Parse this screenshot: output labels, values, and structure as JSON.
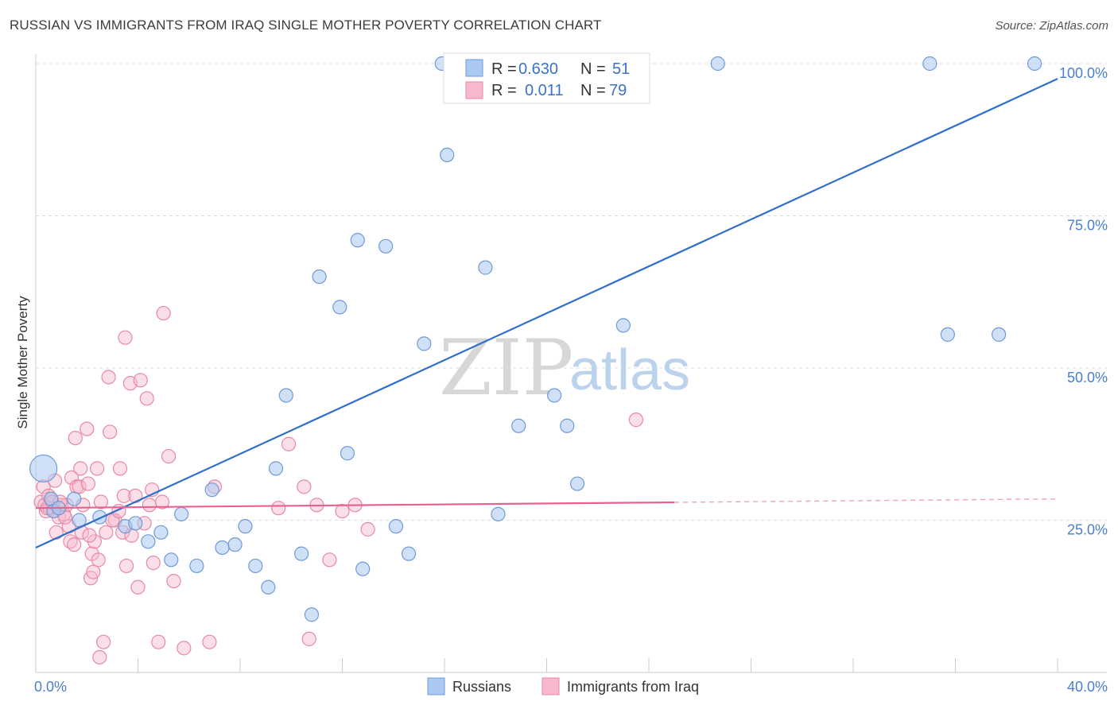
{
  "title": "RUSSIAN VS IMMIGRANTS FROM IRAQ SINGLE MOTHER POVERTY CORRELATION CHART",
  "source": "Source: ZipAtlas.com",
  "watermark": {
    "zip": "ZIP",
    "atlas": "atlas"
  },
  "colors": {
    "russians_fill": "#aac8f0",
    "russians_stroke": "#6f9ad8",
    "russians_line": "#2e6fcc",
    "iraq_fill": "#f6b8cc",
    "iraq_stroke": "#e888a6",
    "iraq_line": "#e8628f",
    "grid": "#dddddd",
    "axis_tick": "#4a7fcf"
  },
  "legend": {
    "rows": [
      {
        "r_label": "R =",
        "r_value": "0.630",
        "n_label": "N =",
        "n_value": "51"
      },
      {
        "r_label": "R =",
        "r_value": "0.011",
        "n_label": "N =",
        "n_value": "79"
      }
    ]
  },
  "bottom_legend": {
    "russians": "Russians",
    "iraq": "Immigrants from Iraq"
  },
  "chart_data": {
    "type": "scatter",
    "title": "RUSSIAN VS IMMIGRANTS FROM IRAQ SINGLE MOTHER POVERTY CORRELATION CHART",
    "ylabel": "Single Mother Poverty",
    "xlabel": "",
    "xlim": [
      0,
      40
    ],
    "ylim": [
      0,
      100
    ],
    "x_tick_labels": [
      "0.0%",
      "40.0%"
    ],
    "y_ticks": [
      25,
      50,
      75,
      100
    ],
    "y_tick_labels": [
      "25.0%",
      "50.0%",
      "75.0%",
      "100.0%"
    ],
    "grid": true,
    "legend_position": "top-center",
    "series": [
      {
        "name": "Russians",
        "R": 0.63,
        "N": 51,
        "trend": {
          "x": [
            0,
            40
          ],
          "y": [
            20.5,
            97.5
          ],
          "dashed_from": null
        },
        "points": [
          [
            0.3,
            33.5,
            "large"
          ],
          [
            0.6,
            28.5
          ],
          [
            0.7,
            26.5
          ],
          [
            0.9,
            27.0
          ],
          [
            1.5,
            28.5
          ],
          [
            1.7,
            25.0
          ],
          [
            2.5,
            25.5
          ],
          [
            3.5,
            24.0
          ],
          [
            3.9,
            24.5
          ],
          [
            4.4,
            21.5
          ],
          [
            4.9,
            23.0
          ],
          [
            5.3,
            18.5
          ],
          [
            5.7,
            26.0
          ],
          [
            6.3,
            17.5
          ],
          [
            6.9,
            30.0
          ],
          [
            7.3,
            20.5
          ],
          [
            7.8,
            21.0
          ],
          [
            8.2,
            24.0
          ],
          [
            8.6,
            17.5
          ],
          [
            9.1,
            14.0
          ],
          [
            9.4,
            33.5
          ],
          [
            9.8,
            45.5
          ],
          [
            10.4,
            19.5
          ],
          [
            10.8,
            9.5
          ],
          [
            11.1,
            65.0
          ],
          [
            11.9,
            60.0
          ],
          [
            12.2,
            36.0
          ],
          [
            12.6,
            71.0
          ],
          [
            12.8,
            17.0
          ],
          [
            13.7,
            70.0
          ],
          [
            14.1,
            24.0
          ],
          [
            14.6,
            19.5
          ],
          [
            15.2,
            54.0
          ],
          [
            15.9,
            100.0
          ],
          [
            16.1,
            85.0
          ],
          [
            17.0,
            100.0
          ],
          [
            17.2,
            100.0
          ],
          [
            17.6,
            66.5
          ],
          [
            18.1,
            26.0
          ],
          [
            18.6,
            100.0
          ],
          [
            18.9,
            40.5
          ],
          [
            20.3,
            45.5
          ],
          [
            20.8,
            40.5
          ],
          [
            21.2,
            31.0
          ],
          [
            22.4,
            100.0
          ],
          [
            23.0,
            57.0
          ],
          [
            26.7,
            100.0
          ],
          [
            35.0,
            100.0
          ],
          [
            35.7,
            55.5
          ],
          [
            37.7,
            55.5
          ],
          [
            39.1,
            100.0
          ]
        ]
      },
      {
        "name": "Immigrants from Iraq",
        "R": 0.011,
        "N": 79,
        "trend": {
          "x": [
            0,
            40
          ],
          "y": [
            27.0,
            28.5
          ],
          "dashed_from": 25.0
        },
        "points": [
          [
            0.2,
            28.0
          ],
          [
            0.3,
            30.5
          ],
          [
            0.35,
            27.5
          ],
          [
            0.4,
            26.5
          ],
          [
            0.5,
            29.0
          ],
          [
            0.55,
            27.0
          ],
          [
            0.6,
            28.5
          ],
          [
            0.7,
            26.5
          ],
          [
            0.75,
            31.5
          ],
          [
            0.8,
            23.0
          ],
          [
            0.9,
            25.5
          ],
          [
            1.0,
            27.5
          ],
          [
            1.1,
            26.0
          ],
          [
            1.2,
            27.5
          ],
          [
            1.3,
            24.0
          ],
          [
            1.35,
            21.5
          ],
          [
            1.4,
            32.0
          ],
          [
            1.5,
            21.0
          ],
          [
            1.55,
            38.5
          ],
          [
            1.6,
            30.5
          ],
          [
            1.7,
            30.5
          ],
          [
            1.75,
            33.5
          ],
          [
            1.8,
            23.0
          ],
          [
            1.85,
            27.5
          ],
          [
            2.0,
            40.0
          ],
          [
            2.05,
            31.0
          ],
          [
            2.15,
            15.5
          ],
          [
            2.2,
            19.5
          ],
          [
            2.25,
            16.5
          ],
          [
            2.3,
            21.5
          ],
          [
            2.4,
            33.5
          ],
          [
            2.45,
            18.5
          ],
          [
            2.5,
            2.5
          ],
          [
            2.55,
            28.0
          ],
          [
            2.65,
            5.0
          ],
          [
            2.75,
            23.0
          ],
          [
            2.85,
            48.5
          ],
          [
            2.9,
            39.5
          ],
          [
            3.1,
            25.0
          ],
          [
            3.3,
            33.5
          ],
          [
            3.4,
            23.0
          ],
          [
            3.45,
            29.0
          ],
          [
            3.5,
            55.0
          ],
          [
            3.55,
            17.5
          ],
          [
            3.7,
            47.5
          ],
          [
            3.75,
            22.5
          ],
          [
            3.9,
            29.0
          ],
          [
            4.0,
            14.0
          ],
          [
            4.1,
            48.0
          ],
          [
            4.25,
            24.5
          ],
          [
            4.35,
            45.0
          ],
          [
            4.45,
            27.5
          ],
          [
            4.55,
            30.0
          ],
          [
            4.6,
            18.0
          ],
          [
            4.8,
            5.0
          ],
          [
            4.95,
            28.0
          ],
          [
            5.0,
            59.0
          ],
          [
            5.2,
            35.5
          ],
          [
            5.4,
            15.0
          ],
          [
            5.8,
            4.0
          ],
          [
            6.8,
            5.0
          ],
          [
            7.0,
            30.5
          ],
          [
            9.5,
            27.0
          ],
          [
            9.9,
            37.5
          ],
          [
            10.5,
            30.5
          ],
          [
            10.7,
            5.5
          ],
          [
            11.0,
            27.5
          ],
          [
            11.5,
            18.5
          ],
          [
            12.0,
            26.5
          ],
          [
            12.5,
            27.5
          ],
          [
            13.0,
            23.5
          ],
          [
            23.5,
            41.5
          ],
          [
            0.45,
            27.0
          ],
          [
            0.65,
            28.0
          ],
          [
            1.15,
            25.5
          ],
          [
            2.1,
            22.5
          ],
          [
            3.0,
            25.0
          ],
          [
            3.25,
            26.5
          ],
          [
            0.95,
            28.0
          ]
        ]
      }
    ]
  }
}
